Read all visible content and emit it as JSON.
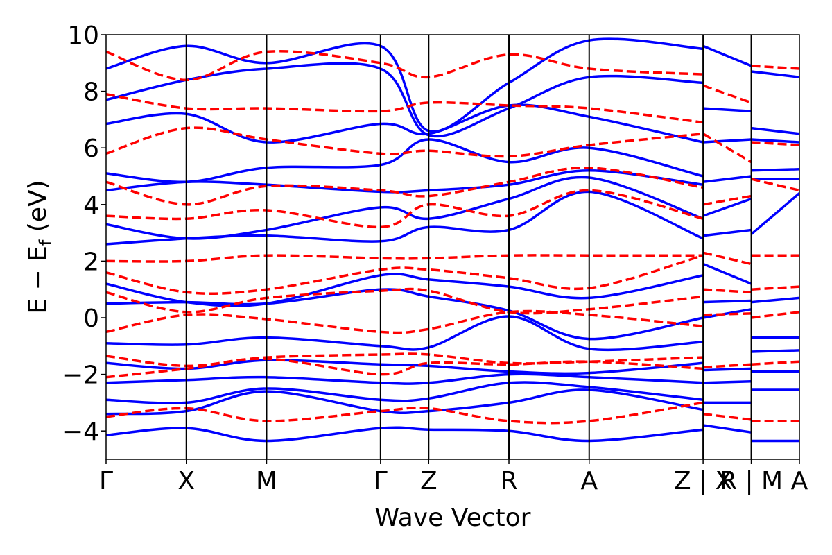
{
  "chart_data": {
    "type": "line",
    "title": "",
    "xlabel": "Wave Vector",
    "ylabel": "E − E",
    "ylabel_subscript": "f",
    "ylabel_unit": " (eV)",
    "ylim": [
      -5,
      10
    ],
    "yticks": [
      -4,
      -2,
      0,
      2,
      4,
      6,
      8,
      10
    ],
    "ytick_labels": [
      "−4",
      "−2",
      "0",
      "2",
      "4",
      "6",
      "8",
      "10"
    ],
    "grid": false,
    "legend": "none",
    "kpath": {
      "positions": [
        0,
        1,
        2,
        3.42,
        4.02,
        5.02,
        6.02,
        7.44,
        8.04,
        8.64
      ],
      "tick_labels": [
        "Γ",
        "X",
        "M",
        "Γ",
        "Z",
        "R",
        "A",
        "Z | X",
        "R | M",
        "A"
      ],
      "separators": [
        1,
        2,
        3.42,
        4.02,
        5.02,
        6.02,
        7.44,
        8.04
      ]
    },
    "series": [
      {
        "style": "solid",
        "color": "#0000ff",
        "bands": [
          {
            "x": [
              0,
              1,
              2,
              3.42,
              4.02,
              5.02,
              6.02,
              7.44
            ],
            "y": [
              -4.15,
              -3.9,
              -4.35,
              -3.9,
              -3.95,
              -4.0,
              -4.35,
              -3.95
            ]
          },
          {
            "x": [
              0,
              1,
              2,
              3.42,
              4.02,
              5.02,
              6.02,
              7.44
            ],
            "y": [
              -3.4,
              -3.3,
              -2.6,
              -3.3,
              -3.3,
              -3.0,
              -2.55,
              -3.25
            ]
          },
          {
            "x": [
              0,
              1,
              2,
              3.42,
              4.02,
              5.02,
              6.02,
              7.44
            ],
            "y": [
              -2.9,
              -3.0,
              -2.5,
              -2.9,
              -2.85,
              -2.3,
              -2.45,
              -2.9
            ]
          },
          {
            "x": [
              0,
              1,
              2,
              3.42,
              4.02,
              5.02,
              6.02,
              7.44
            ],
            "y": [
              -2.3,
              -2.2,
              -2.1,
              -2.3,
              -2.3,
              -2.0,
              -2.1,
              -2.3
            ]
          },
          {
            "x": [
              0,
              1,
              2,
              3.42,
              4.02,
              5.02,
              6.02,
              7.44
            ],
            "y": [
              -1.6,
              -1.8,
              -1.5,
              -1.65,
              -1.7,
              -1.9,
              -1.95,
              -1.6
            ]
          },
          {
            "x": [
              0,
              1,
              2,
              3.42,
              4.02,
              5.02,
              6.02,
              7.44
            ],
            "y": [
              -0.9,
              -0.95,
              -0.7,
              -1.0,
              -1.05,
              0.05,
              -1.1,
              -0.85
            ]
          },
          {
            "x": [
              0,
              1,
              2,
              3.42,
              4.02,
              5.02,
              6.02,
              7.44
            ],
            "y": [
              0.5,
              0.55,
              0.5,
              1.0,
              0.75,
              0.25,
              -0.75,
              0.0
            ]
          },
          {
            "x": [
              0,
              1,
              2,
              3.42,
              4.02,
              5.02,
              6.02,
              7.44
            ],
            "y": [
              1.2,
              0.55,
              0.5,
              1.5,
              1.35,
              1.1,
              0.7,
              1.5
            ]
          },
          {
            "x": [
              0,
              1,
              2,
              3.42,
              4.02,
              5.02,
              6.02,
              7.44
            ],
            "y": [
              2.6,
              2.8,
              2.9,
              2.7,
              3.2,
              3.1,
              4.45,
              2.8
            ]
          },
          {
            "x": [
              0,
              1,
              2,
              3.42,
              4.02,
              5.02,
              6.02,
              7.44
            ],
            "y": [
              3.3,
              2.8,
              3.1,
              3.9,
              3.5,
              4.2,
              4.95,
              3.5
            ]
          },
          {
            "x": [
              0,
              1,
              2,
              3.42,
              4.02,
              5.02,
              6.02,
              7.44
            ],
            "y": [
              4.5,
              4.8,
              4.7,
              4.45,
              4.5,
              4.7,
              5.2,
              4.7
            ]
          },
          {
            "x": [
              0,
              1,
              2,
              3.42,
              4.02,
              5.02,
              6.02,
              7.44
            ],
            "y": [
              5.1,
              4.8,
              5.3,
              5.4,
              6.3,
              5.5,
              6.0,
              5.0
            ]
          },
          {
            "x": [
              0,
              1,
              2,
              3.42,
              4.02,
              5.02,
              6.02,
              7.44
            ],
            "y": [
              6.85,
              7.2,
              6.2,
              6.85,
              6.5,
              7.5,
              7.1,
              6.2
            ]
          },
          {
            "x": [
              0,
              1,
              2,
              3.42,
              4.02,
              5.02,
              6.02,
              7.44
            ],
            "y": [
              7.7,
              8.4,
              8.8,
              8.8,
              6.45,
              7.4,
              8.5,
              8.3
            ]
          },
          {
            "x": [
              0,
              1,
              2,
              3.42,
              4.02,
              5.02,
              6.02,
              7.44
            ],
            "y": [
              8.8,
              9.6,
              9.0,
              9.6,
              6.6,
              8.3,
              9.8,
              9.5
            ]
          }
        ]
      },
      {
        "style": "dashed",
        "color": "#ff0000",
        "bands": [
          {
            "x": [
              0,
              1,
              2,
              3.42,
              4.02,
              5.02,
              6.02,
              7.44
            ],
            "y": [
              -3.5,
              -3.2,
              -3.65,
              -3.3,
              -3.2,
              -3.65,
              -3.65,
              -3.0
            ]
          },
          {
            "x": [
              0,
              1,
              2,
              3.42,
              4.02,
              5.02,
              6.02,
              7.44
            ],
            "y": [
              -2.1,
              -1.8,
              -1.45,
              -2.0,
              -1.6,
              -1.65,
              -1.55,
              -1.8
            ]
          },
          {
            "x": [
              0,
              1,
              2,
              3.42,
              4.02,
              5.02,
              6.02,
              7.44
            ],
            "y": [
              -1.35,
              -1.7,
              -1.4,
              -1.3,
              -1.3,
              -1.6,
              -1.55,
              -1.4
            ]
          },
          {
            "x": [
              0,
              1,
              2,
              3.42,
              4.02,
              5.02,
              6.02,
              7.44
            ],
            "y": [
              -0.5,
              0.1,
              -0.05,
              -0.5,
              -0.4,
              0.2,
              0.1,
              -0.3
            ]
          },
          {
            "x": [
              0,
              1,
              2,
              3.42,
              4.02,
              5.02,
              6.02,
              7.44
            ],
            "y": [
              0.9,
              0.2,
              0.7,
              0.95,
              0.95,
              0.2,
              0.3,
              0.75
            ]
          },
          {
            "x": [
              0,
              1,
              2,
              3.42,
              4.02,
              5.02,
              6.02,
              7.44
            ],
            "y": [
              1.6,
              0.9,
              1.0,
              1.7,
              1.7,
              1.4,
              1.05,
              2.2
            ]
          },
          {
            "x": [
              0,
              1,
              2,
              3.42,
              4.02,
              5.02,
              6.02,
              7.44
            ],
            "y": [
              2.0,
              2.0,
              2.2,
              2.1,
              2.1,
              2.2,
              2.2,
              2.2
            ]
          },
          {
            "x": [
              0,
              1,
              2,
              3.42,
              4.02,
              5.02,
              6.02,
              7.44
            ],
            "y": [
              3.6,
              3.5,
              3.8,
              3.2,
              4.0,
              3.6,
              4.5,
              3.5
            ]
          },
          {
            "x": [
              0,
              1,
              2,
              3.42,
              4.02,
              5.02,
              6.02,
              7.44
            ],
            "y": [
              4.8,
              4.0,
              4.65,
              4.5,
              4.3,
              4.8,
              5.3,
              4.6
            ]
          },
          {
            "x": [
              0,
              1,
              2,
              3.42,
              4.02,
              5.02,
              6.02,
              7.44
            ],
            "y": [
              5.8,
              6.7,
              6.3,
              5.8,
              5.9,
              5.7,
              6.1,
              6.5
            ]
          },
          {
            "x": [
              0,
              1,
              2,
              3.42,
              4.02,
              5.02,
              6.02,
              7.44
            ],
            "y": [
              7.9,
              7.4,
              7.4,
              7.3,
              7.6,
              7.5,
              7.4,
              6.9
            ]
          },
          {
            "x": [
              0,
              1,
              2,
              3.42,
              4.02,
              5.02,
              6.02,
              7.44
            ],
            "y": [
              9.4,
              8.4,
              9.4,
              9.0,
              8.5,
              9.3,
              8.8,
              8.6
            ]
          }
        ]
      },
      {
        "style": "solid",
        "color": "#0000ff",
        "bands": [
          {
            "x": [
              7.44,
              8.04
            ],
            "y": [
              -3.8,
              -4.05
            ]
          },
          {
            "x": [
              7.44,
              8.04
            ],
            "y": [
              -3.0,
              -3.0
            ]
          },
          {
            "x": [
              7.44,
              8.04
            ],
            "y": [
              -2.3,
              -2.25
            ]
          },
          {
            "x": [
              7.44,
              8.04
            ],
            "y": [
              -1.85,
              -1.8
            ]
          },
          {
            "x": [
              7.44,
              8.04
            ],
            "y": [
              0.0,
              0.3
            ]
          },
          {
            "x": [
              7.44,
              8.04
            ],
            "y": [
              0.55,
              0.6
            ]
          },
          {
            "x": [
              7.44,
              8.04
            ],
            "y": [
              1.9,
              1.2
            ]
          },
          {
            "x": [
              7.44,
              8.04
            ],
            "y": [
              2.9,
              3.1
            ]
          },
          {
            "x": [
              7.44,
              8.04
            ],
            "y": [
              3.6,
              4.2
            ]
          },
          {
            "x": [
              7.44,
              8.04
            ],
            "y": [
              4.8,
              5.0
            ]
          },
          {
            "x": [
              7.44,
              8.04
            ],
            "y": [
              6.2,
              6.3
            ]
          },
          {
            "x": [
              7.44,
              8.04
            ],
            "y": [
              7.4,
              7.3
            ]
          },
          {
            "x": [
              7.44,
              8.04
            ],
            "y": [
              9.6,
              8.9
            ]
          },
          {
            "x": [
              8.04,
              8.64
            ],
            "y": [
              -4.35,
              -4.35
            ]
          },
          {
            "x": [
              8.04,
              8.64
            ],
            "y": [
              -2.55,
              -2.55
            ]
          },
          {
            "x": [
              8.04,
              8.64
            ],
            "y": [
              -1.9,
              -1.9
            ]
          },
          {
            "x": [
              8.04,
              8.64
            ],
            "y": [
              -1.2,
              -1.15
            ]
          },
          {
            "x": [
              8.04,
              8.64
            ],
            "y": [
              -0.7,
              -0.7
            ]
          },
          {
            "x": [
              8.04,
              8.64
            ],
            "y": [
              0.55,
              0.7
            ]
          },
          {
            "x": [
              8.04,
              8.64
            ],
            "y": [
              2.95,
              4.4
            ]
          },
          {
            "x": [
              8.04,
              8.64
            ],
            "y": [
              4.9,
              4.9
            ]
          },
          {
            "x": [
              8.04,
              8.64
            ],
            "y": [
              5.2,
              5.25
            ]
          },
          {
            "x": [
              8.04,
              8.64
            ],
            "y": [
              6.3,
              6.2
            ]
          },
          {
            "x": [
              8.04,
              8.64
            ],
            "y": [
              6.7,
              6.5
            ]
          },
          {
            "x": [
              8.04,
              8.64
            ],
            "y": [
              8.7,
              8.5
            ]
          }
        ]
      },
      {
        "style": "dashed",
        "color": "#ff0000",
        "bands": [
          {
            "x": [
              7.44,
              8.04
            ],
            "y": [
              -3.4,
              -3.6
            ]
          },
          {
            "x": [
              7.44,
              8.04
            ],
            "y": [
              -1.75,
              -1.65
            ]
          },
          {
            "x": [
              7.44,
              8.04
            ],
            "y": [
              0.1,
              0.15
            ]
          },
          {
            "x": [
              7.44,
              8.04
            ],
            "y": [
              1.0,
              0.9
            ]
          },
          {
            "x": [
              7.44,
              8.04
            ],
            "y": [
              2.3,
              1.9
            ]
          },
          {
            "x": [
              7.44,
              8.04
            ],
            "y": [
              4.0,
              4.3
            ]
          },
          {
            "x": [
              7.44,
              8.04
            ],
            "y": [
              6.5,
              5.5
            ]
          },
          {
            "x": [
              7.44,
              8.04
            ],
            "y": [
              8.2,
              7.6
            ]
          },
          {
            "x": [
              8.04,
              8.64
            ],
            "y": [
              -3.65,
              -3.65
            ]
          },
          {
            "x": [
              8.04,
              8.64
            ],
            "y": [
              -1.65,
              -1.55
            ]
          },
          {
            "x": [
              8.04,
              8.64
            ],
            "y": [
              0.0,
              0.2
            ]
          },
          {
            "x": [
              8.04,
              8.64
            ],
            "y": [
              1.0,
              1.1
            ]
          },
          {
            "x": [
              8.04,
              8.64
            ],
            "y": [
              2.2,
              2.2
            ]
          },
          {
            "x": [
              8.04,
              8.64
            ],
            "y": [
              4.9,
              4.5
            ]
          },
          {
            "x": [
              8.04,
              8.64
            ],
            "y": [
              6.2,
              6.1
            ]
          },
          {
            "x": [
              8.04,
              8.64
            ],
            "y": [
              8.9,
              8.8
            ]
          }
        ]
      }
    ]
  }
}
